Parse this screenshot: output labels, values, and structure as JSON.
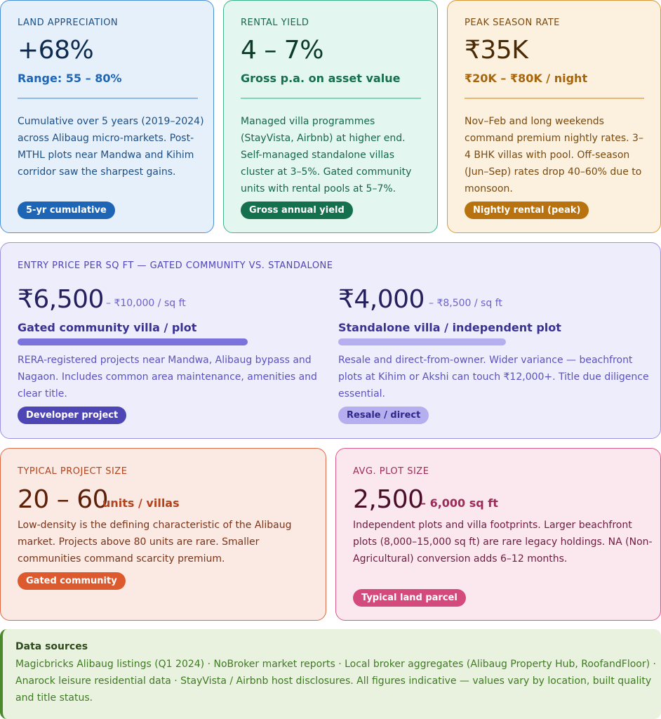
{
  "land": {
    "eyebrow": "LAND APPRECIATION",
    "value": "+68%",
    "subtitle": "Range: 55 – 80%",
    "body": [
      "Cumulative over 5 years (2019–2024)",
      "across Alibaug micro-markets. Post-",
      "MTHL plots near Mandwa and Kihim",
      "corridor saw the sharpest gains."
    ],
    "badge": "5-yr cumulative"
  },
  "rental": {
    "eyebrow": "RENTAL YIELD",
    "value": "4 – 7%",
    "subtitle": "Gross p.a. on asset value",
    "body": [
      "Managed villa programmes",
      "(StayVista, Airbnb) at higher end.",
      "Self-managed standalone villas",
      "cluster at 3–5%. Gated community",
      "units with rental pools at 5–7%."
    ],
    "badge": "Gross annual yield"
  },
  "peak": {
    "eyebrow": "PEAK SEASON RATE",
    "value": "₹35K",
    "subtitle": "₹20K – ₹80K / night",
    "body": [
      "Nov–Feb and long weekends",
      "command premium nightly rates. 3–",
      "4 BHK villas with pool. Off-season",
      "(Jun–Sep) rates drop 40–60% due to",
      "monsoon."
    ],
    "badge": "Nightly rental (peak)"
  },
  "entry": {
    "eyebrow": "ENTRY PRICE PER SQ FT — GATED COMMUNITY VS. STANDALONE",
    "gated": {
      "value": "₹6,500",
      "range": "– ₹10,000 / sq ft",
      "label": "Gated community villa / plot",
      "bar_fraction": 1.0,
      "body": [
        "RERA-registered projects near Mandwa, Alibaug bypass and",
        "Nagaon. Includes common area maintenance, amenities and",
        "clear title."
      ],
      "badge": "Developer project"
    },
    "standalone": {
      "value": "₹4,000",
      "range": "– ₹8,500 / sq ft",
      "label": "Standalone villa / independent plot",
      "bar_fraction": 0.73,
      "body": [
        "Resale and direct-from-owner. Wider variance — beachfront",
        "plots at Kihim or Akshi can touch ₹12,000+. Title due diligence",
        "essential."
      ],
      "badge": "Resale / direct"
    }
  },
  "project": {
    "eyebrow": "TYPICAL PROJECT SIZE",
    "value": "20 – 60",
    "unit": "units / villas",
    "body": [
      "Low-density is the defining characteristic of the Alibaug",
      "market. Projects above 80 units are rare. Smaller",
      "communities command scarcity premium."
    ],
    "badge": "Gated community"
  },
  "plot": {
    "eyebrow": "AVG. PLOT SIZE",
    "value": "2,500",
    "unit": "– 6,000 sq ft",
    "body": [
      "Independent plots and villa footprints. Larger beachfront",
      "plots (8,000–15,000 sq ft) are rare legacy holdings. NA (Non-",
      "Agricultural) conversion adds 6–12 months."
    ],
    "badge": "Typical land parcel"
  },
  "sources": {
    "title": "Data sources",
    "body": [
      "Magicbricks Alibaug listings (Q1 2024) · NoBroker market reports · Local broker aggregates (Alibaug Property Hub, RoofandFloor) ·",
      "Anarock leisure residential data · StayVista / Airbnb host disclosures. All figures indicative — values vary by location, built quality",
      "and title status."
    ]
  },
  "colors": {
    "land_accent": "#1f65b5",
    "rental_accent": "#15704e",
    "peak_accent": "#b8720f",
    "entry_accent": "#4f46b6",
    "project_accent": "#dc5a2e",
    "plot_accent": "#d44a7d",
    "sources_accent": "#4b8a2a"
  }
}
